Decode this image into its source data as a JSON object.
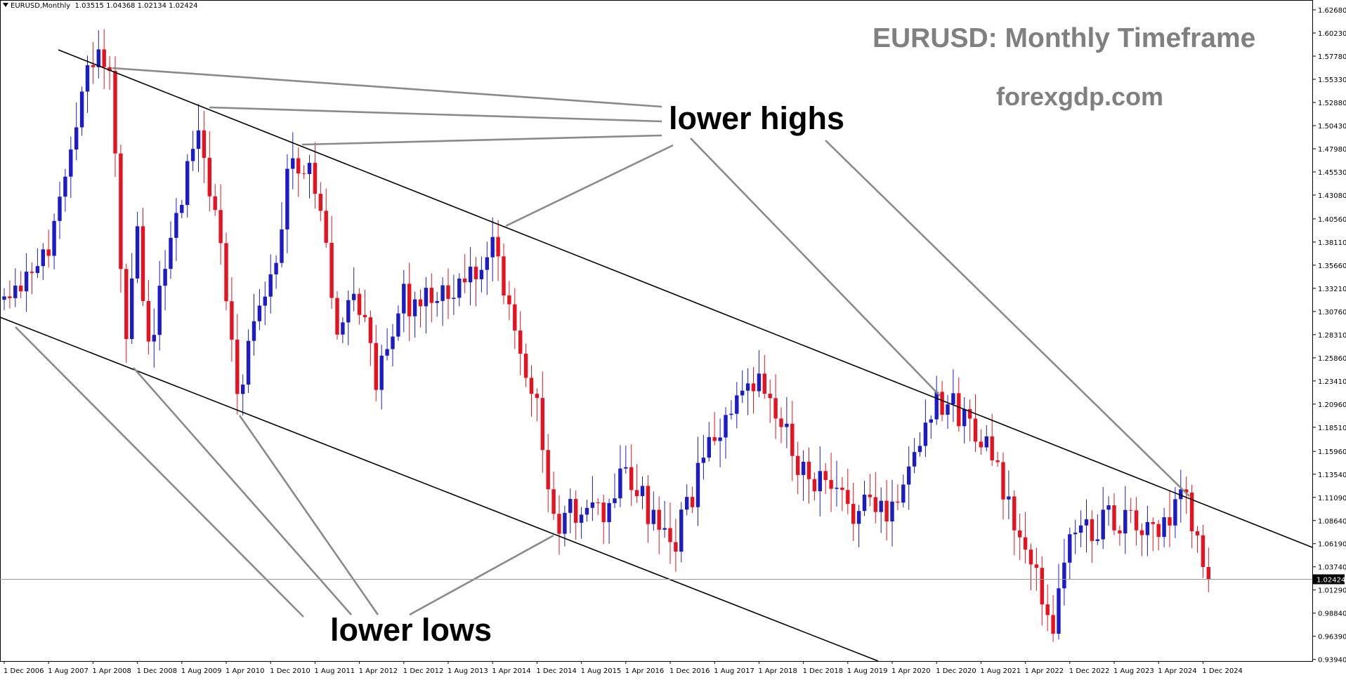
{
  "header": {
    "symbol": "EURUSD,Monthly",
    "ohlc": "1.03515 1.04368 1.02134 1.02424"
  },
  "titles": {
    "main": "EURUSD: Monthly Timeframe",
    "site": "forexgdp.com"
  },
  "annotations": {
    "highs_label": "lower highs",
    "lows_label": "lower lows"
  },
  "price_label": "1.02424",
  "colors": {
    "bull": "#1c1cc4",
    "bear": "#e8121f",
    "title_gray": "#808080",
    "trendline": "#000000",
    "pointer": "#8a8a8a"
  },
  "chart_data": {
    "type": "candlestick",
    "title": "EURUSD: Monthly Timeframe",
    "timeframe": "Monthly",
    "ylim": [
      0.9377,
      1.6335
    ],
    "y_ticks": [
      "1.62680",
      "1.60230",
      "1.57780",
      "1.55330",
      "1.52880",
      "1.50430",
      "1.47980",
      "1.45530",
      "1.43080",
      "1.40560",
      "1.38110",
      "1.35660",
      "1.33210",
      "1.30760",
      "1.28310",
      "1.25860",
      "1.23410",
      "1.20960",
      "1.18510",
      "1.15960",
      "1.13540",
      "1.11090",
      "1.08640",
      "1.06190",
      "1.03740",
      "1.01290",
      "0.98840",
      "0.96390",
      "0.93940"
    ],
    "x_labels": [
      "1 Dec 2006",
      "1 Aug 2007",
      "1 Apr 2008",
      "1 Dec 2008",
      "1 Aug 2009",
      "1 Apr 2010",
      "1 Dec 2010",
      "1 Aug 2011",
      "1 Apr 2012",
      "1 Dec 2012",
      "1 Aug 2013",
      "1 Apr 2014",
      "1 Dec 2014",
      "1 Aug 2015",
      "1 Apr 2016",
      "1 Dec 2016",
      "1 Aug 2017",
      "1 Apr 2018",
      "1 Dec 2018",
      "1 Aug 2019",
      "1 Apr 2020",
      "1 Dec 2020",
      "1 Aug 2021",
      "1 Apr 2022",
      "1 Dec 2022",
      "1 Aug 2023",
      "1 Apr 2024",
      "1 Dec 2024"
    ],
    "last_price": 1.02424,
    "close_path": [
      [
        "1 Dec 2006",
        1.32
      ],
      [
        "1 Aug 2007",
        1.38
      ],
      [
        "1 Nov 2007",
        1.46
      ],
      [
        "1 Apr 2008",
        1.575
      ],
      [
        "1 Jul 2008",
        1.56
      ],
      [
        "1 Oct 2008",
        1.27
      ],
      [
        "1 Dec 2008",
        1.4
      ],
      [
        "1 Feb 2009",
        1.27
      ],
      [
        "1 Aug 2009",
        1.43
      ],
      [
        "1 Nov 2009",
        1.5
      ],
      [
        "1 Apr 2010",
        1.33
      ],
      [
        "1 Jun 2010",
        1.22
      ],
      [
        "1 Dec 2010",
        1.34
      ],
      [
        "1 Apr 2011",
        1.48
      ],
      [
        "1 Aug 2011",
        1.44
      ],
      [
        "1 Dec 2011",
        1.3
      ],
      [
        "1 Apr 2012",
        1.32
      ],
      [
        "1 Jul 2012",
        1.23
      ],
      [
        "1 Dec 2012",
        1.32
      ],
      [
        "1 Aug 2013",
        1.32
      ],
      [
        "1 Apr 2014",
        1.38
      ],
      [
        "1 Dec 2014",
        1.21
      ],
      [
        "1 Mar 2015",
        1.08
      ],
      [
        "1 Aug 2015",
        1.1
      ],
      [
        "1 Dec 2015",
        1.09
      ],
      [
        "1 Apr 2016",
        1.14
      ],
      [
        "1 Dec 2016",
        1.05
      ],
      [
        "1 Aug 2017",
        1.18
      ],
      [
        "1 Apr 2018",
        1.23
      ],
      [
        "1 Dec 2018",
        1.14
      ],
      [
        "1 Aug 2019",
        1.1
      ],
      [
        "1 Apr 2020",
        1.1
      ],
      [
        "1 Dec 2020",
        1.22
      ],
      [
        "1 Aug 2021",
        1.18
      ],
      [
        "1 Apr 2022",
        1.05
      ],
      [
        "1 Sep 2022",
        0.98
      ],
      [
        "1 Dec 2022",
        1.07
      ],
      [
        "1 Aug 2023",
        1.09
      ],
      [
        "1 Apr 2024",
        1.07
      ],
      [
        "1 Sep 2024",
        1.11
      ],
      [
        "1 Dec 2024",
        1.04
      ],
      [
        "1 Jan 2025",
        1.02424
      ]
    ]
  }
}
